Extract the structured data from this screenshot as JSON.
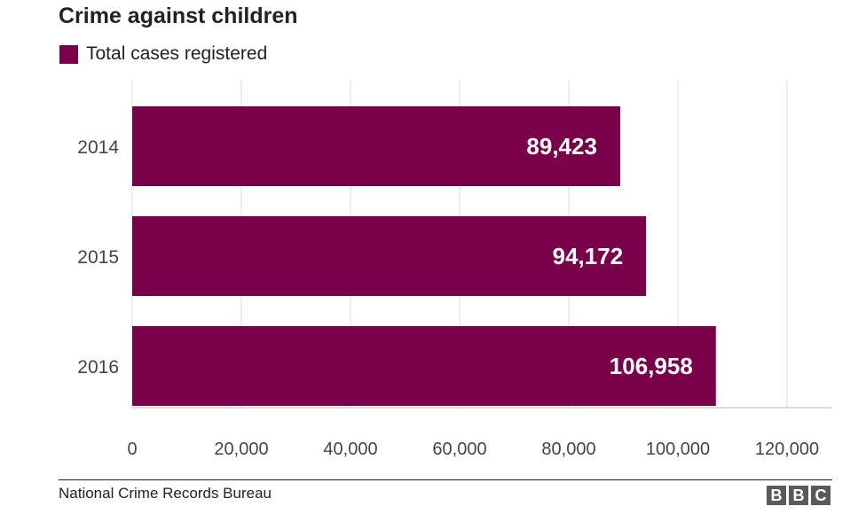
{
  "title": "Crime against children",
  "source": "National Crime Records Bureau",
  "logo": [
    "B",
    "B",
    "C"
  ],
  "colors": {
    "bar": "#7a0049",
    "grid": "#dcdcdc",
    "text": "#222222"
  },
  "chart_data": {
    "type": "bar",
    "orientation": "horizontal",
    "title": "Crime against children",
    "categories": [
      "2014",
      "2015",
      "2016"
    ],
    "series": [
      {
        "name": "Total cases registered",
        "values": [
          89423,
          94172,
          106958
        ]
      }
    ],
    "data_labels": [
      "89,423",
      "94,172",
      "106,958"
    ],
    "xlim": [
      0,
      127000
    ],
    "xticks": [
      0,
      20000,
      40000,
      60000,
      80000,
      100000,
      120000
    ],
    "xtick_labels": [
      "0",
      "20,000",
      "40,000",
      "60,000",
      "80,000",
      "100,000",
      "120,000"
    ],
    "grid": true,
    "legend_position": "top-left"
  }
}
